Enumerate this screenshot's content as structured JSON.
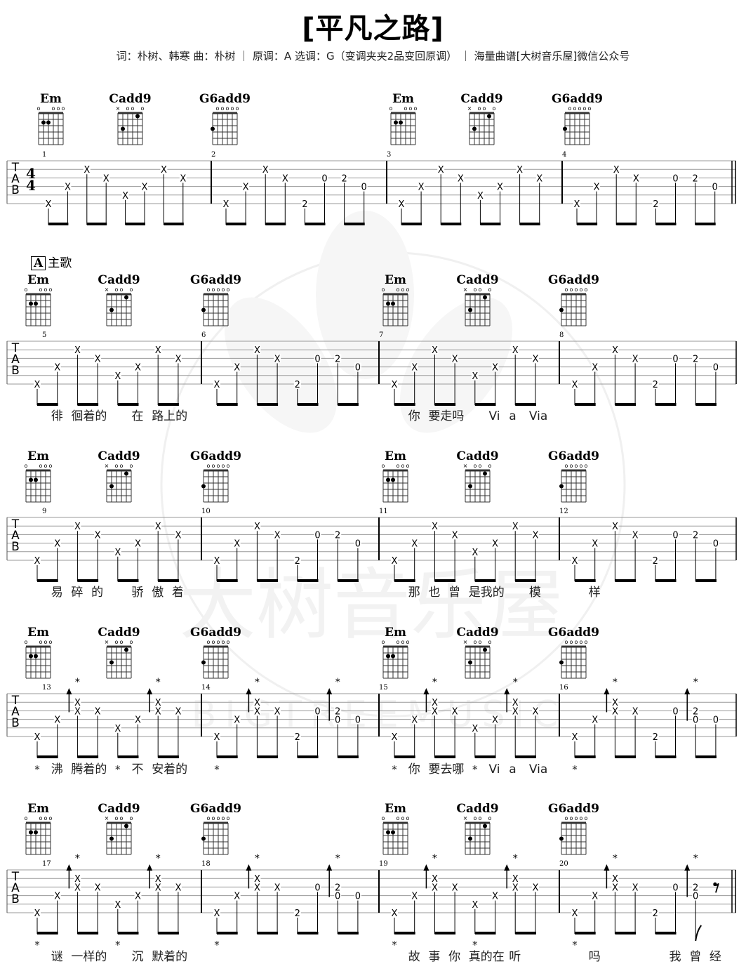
{
  "title": "[平凡之路]",
  "subtitle": "词：朴树、韩寒  曲：朴树 ｜ 原调：A  选调：G（变调夹夹2品变回原调） ｜ 海量曲谱[大树音乐屋]微信公众号",
  "watermark": {
    "cn": "大树音乐屋",
    "en": "BIGTREEMUSIC",
    "color": "#f1f1f1"
  },
  "tab_clef": [
    "T",
    "A",
    "B"
  ],
  "time_signature": {
    "top": "4",
    "bottom": "4"
  },
  "section": {
    "letter": "A",
    "name": "主歌"
  },
  "chords": {
    "Em": {
      "name": "Em",
      "markers": [
        "o",
        "",
        "",
        "o",
        "o",
        "o"
      ],
      "dots": [
        [
          5,
          2
        ],
        [
          4,
          2
        ]
      ]
    },
    "Cadd9": {
      "name": "Cadd9",
      "markers": [
        "×",
        "",
        "o",
        "o",
        "",
        "o"
      ],
      "dots": [
        [
          5,
          3
        ],
        [
          2,
          1
        ]
      ]
    },
    "G6add9": {
      "name": "G6add9",
      "markers": [
        "",
        "o",
        "o",
        "o",
        "o",
        "o"
      ],
      "dots": [
        [
          6,
          3
        ]
      ]
    }
  },
  "patterns": {
    "A": [
      {
        "n": [
          [
            6,
            "x"
          ]
        ]
      },
      {
        "n": [
          [
            4,
            "x"
          ]
        ]
      },
      {
        "n": [
          [
            2,
            "x"
          ]
        ]
      },
      {
        "n": [
          [
            3,
            "x"
          ]
        ]
      },
      {
        "n": [
          [
            5,
            "x"
          ]
        ]
      },
      {
        "n": [
          [
            4,
            "x"
          ]
        ]
      },
      {
        "n": [
          [
            2,
            "x"
          ]
        ]
      },
      {
        "n": [
          [
            3,
            "x"
          ]
        ]
      }
    ],
    "G": [
      {
        "n": [
          [
            6,
            "x"
          ]
        ]
      },
      {
        "n": [
          [
            4,
            "x"
          ]
        ]
      },
      {
        "n": [
          [
            2,
            "x"
          ]
        ]
      },
      {
        "n": [
          [
            3,
            "x"
          ]
        ]
      },
      {
        "n": [
          [
            6,
            "2"
          ]
        ]
      },
      {
        "n": [
          [
            3,
            "0"
          ]
        ]
      },
      {
        "n": [
          [
            3,
            "2"
          ]
        ]
      },
      {
        "n": [
          [
            4,
            "0"
          ]
        ]
      }
    ],
    "A_strum": [
      {
        "n": [
          [
            6,
            "x"
          ]
        ]
      },
      {
        "n": [
          [
            4,
            "x"
          ]
        ]
      },
      {
        "n": [
          [
            2,
            "x"
          ],
          [
            3,
            "x"
          ]
        ],
        "arrow": true,
        "star": true
      },
      {
        "n": [
          [
            3,
            "x"
          ]
        ]
      },
      {
        "n": [
          [
            5,
            "x"
          ]
        ]
      },
      {
        "n": [
          [
            4,
            "x"
          ]
        ]
      },
      {
        "n": [
          [
            2,
            "x"
          ],
          [
            3,
            "x"
          ]
        ],
        "arrow": true,
        "star": true
      },
      {
        "n": [
          [
            3,
            "x"
          ]
        ]
      }
    ],
    "G_strum": [
      {
        "n": [
          [
            6,
            "x"
          ]
        ]
      },
      {
        "n": [
          [
            4,
            "x"
          ]
        ]
      },
      {
        "n": [
          [
            2,
            "x"
          ],
          [
            3,
            "x"
          ]
        ],
        "arrow": true,
        "star": true
      },
      {
        "n": [
          [
            3,
            "x"
          ]
        ]
      },
      {
        "n": [
          [
            6,
            "2"
          ]
        ]
      },
      {
        "n": [
          [
            3,
            "0"
          ]
        ]
      },
      {
        "n": [
          [
            3,
            "2"
          ],
          [
            4,
            "0"
          ]
        ],
        "arrow": true,
        "star": true
      },
      {
        "n": [
          [
            4,
            "0"
          ]
        ]
      }
    ],
    "G_end": [
      {
        "n": [
          [
            6,
            "x"
          ]
        ]
      },
      {
        "n": [
          [
            4,
            "x"
          ]
        ]
      },
      {
        "n": [
          [
            2,
            "x"
          ],
          [
            3,
            "x"
          ]
        ],
        "arrow": true,
        "star": true
      },
      {
        "n": [
          [
            3,
            "x"
          ]
        ]
      },
      {
        "n": [
          [
            6,
            "2"
          ]
        ]
      },
      {
        "n": [
          [
            3,
            "0"
          ]
        ]
      },
      {
        "n": [
          [
            3,
            "2"
          ],
          [
            4,
            "0"
          ]
        ],
        "arrow": true,
        "star": true,
        "flag": true
      },
      {
        "rest": "eighth"
      }
    ]
  },
  "systems": [
    {
      "chords": [
        "Em",
        "Cadd9",
        "G6add9",
        "Em",
        "Cadd9",
        "G6add9"
      ],
      "measures": [
        {
          "number": "1",
          "pattern": "A"
        },
        {
          "number": "2",
          "pattern": "G"
        },
        {
          "number": "3",
          "pattern": "A"
        },
        {
          "number": "4",
          "pattern": "G"
        }
      ],
      "end": "double",
      "lyrics": []
    },
    {
      "section": true,
      "chords": [
        "Em",
        "Cadd9",
        "G6add9",
        "Em",
        "Cadd9",
        "G6add9"
      ],
      "measures": [
        {
          "number": "5",
          "pattern": "A"
        },
        {
          "number": "6",
          "pattern": "G"
        },
        {
          "number": "7",
          "pattern": "A"
        },
        {
          "number": "8",
          "pattern": "G"
        }
      ],
      "end": "single",
      "lyrics": [
        {
          "m": 0,
          "e": 1,
          "text": "徘"
        },
        {
          "m": 0,
          "e": 2,
          "text": "徊着的"
        },
        {
          "m": 0,
          "e": 5,
          "text": "在"
        },
        {
          "m": 0,
          "e": 6,
          "text": "路上的"
        },
        {
          "m": 2,
          "e": 1,
          "text": "你"
        },
        {
          "m": 2,
          "e": 2,
          "text": "要走吗"
        },
        {
          "m": 2,
          "e": 5,
          "text": "Vi"
        },
        {
          "m": 2,
          "e": 6,
          "text": "a"
        },
        {
          "m": 2,
          "e": 7,
          "text": "Via"
        }
      ]
    },
    {
      "chords": [
        "Em",
        "Cadd9",
        "G6add9",
        "Em",
        "Cadd9",
        "G6add9"
      ],
      "measures": [
        {
          "number": "9",
          "pattern": "A"
        },
        {
          "number": "10",
          "pattern": "G"
        },
        {
          "number": "11",
          "pattern": "A"
        },
        {
          "number": "12",
          "pattern": "G"
        }
      ],
      "end": "single",
      "lyrics": [
        {
          "m": 0,
          "e": 1,
          "text": "易"
        },
        {
          "m": 0,
          "e": 2,
          "text": "碎"
        },
        {
          "m": 0,
          "e": 3,
          "text": "的"
        },
        {
          "m": 0,
          "e": 5,
          "text": "骄"
        },
        {
          "m": 0,
          "e": 6,
          "text": "傲"
        },
        {
          "m": 0,
          "e": 7,
          "text": "着"
        },
        {
          "m": 2,
          "e": 1,
          "text": "那"
        },
        {
          "m": 2,
          "e": 2,
          "text": "也"
        },
        {
          "m": 2,
          "e": 3,
          "text": "曾"
        },
        {
          "m": 2,
          "e": 4,
          "text": "是我的"
        },
        {
          "m": 2,
          "e": 7,
          "text": "模"
        },
        {
          "m": 3,
          "e": 1,
          "text": "样"
        }
      ]
    },
    {
      "chords": [
        "Em",
        "Cadd9",
        "G6add9",
        "Em",
        "Cadd9",
        "G6add9"
      ],
      "measures": [
        {
          "number": "13",
          "pattern": "A_strum"
        },
        {
          "number": "14",
          "pattern": "G_strum"
        },
        {
          "number": "15",
          "pattern": "A_strum"
        },
        {
          "number": "16",
          "pattern": "G_strum"
        }
      ],
      "end": "single",
      "lyrics": [
        {
          "m": 0,
          "e": 0,
          "text": "*",
          "mark": true
        },
        {
          "m": 0,
          "e": 1,
          "text": "沸"
        },
        {
          "m": 0,
          "e": 2,
          "text": "腾着的"
        },
        {
          "m": 0,
          "e": 4,
          "text": "*",
          "mark": true
        },
        {
          "m": 0,
          "e": 5,
          "text": "不"
        },
        {
          "m": 0,
          "e": 6,
          "text": "安着的"
        },
        {
          "m": 1,
          "e": 0,
          "text": "*",
          "mark": true
        },
        {
          "m": 2,
          "e": 0,
          "text": "*",
          "mark": true
        },
        {
          "m": 2,
          "e": 1,
          "text": "你"
        },
        {
          "m": 2,
          "e": 2,
          "text": "要去哪"
        },
        {
          "m": 2,
          "e": 4,
          "text": "*",
          "mark": true
        },
        {
          "m": 2,
          "e": 5,
          "text": "Vi"
        },
        {
          "m": 2,
          "e": 6,
          "text": "a"
        },
        {
          "m": 2,
          "e": 7,
          "text": "Via"
        },
        {
          "m": 3,
          "e": 0,
          "text": "*",
          "mark": true
        }
      ]
    },
    {
      "chords": [
        "Em",
        "Cadd9",
        "G6add9",
        "Em",
        "Cadd9",
        "G6add9"
      ],
      "measures": [
        {
          "number": "17",
          "pattern": "A_strum"
        },
        {
          "number": "18",
          "pattern": "G_strum"
        },
        {
          "number": "19",
          "pattern": "A_strum"
        },
        {
          "number": "20",
          "pattern": "G_end"
        }
      ],
      "end": "double",
      "marks_row": true,
      "lyrics": [
        {
          "m": 0,
          "e": 0,
          "text": "*",
          "mark": true
        },
        {
          "m": 0,
          "e": 4,
          "text": "*",
          "mark": true
        },
        {
          "m": 1,
          "e": 0,
          "text": "*",
          "mark": true
        },
        {
          "m": 2,
          "e": 0,
          "text": "*",
          "mark": true
        },
        {
          "m": 2,
          "e": 4,
          "text": "*",
          "mark": true
        },
        {
          "m": 3,
          "e": 0,
          "text": "*",
          "mark": true
        },
        {
          "m": 0,
          "e": 1,
          "text": "谜"
        },
        {
          "m": 0,
          "e": 2,
          "text": "一样的"
        },
        {
          "m": 0,
          "e": 5,
          "text": "沉"
        },
        {
          "m": 0,
          "e": 6,
          "text": "默着的"
        },
        {
          "m": 2,
          "e": 1,
          "text": "故"
        },
        {
          "m": 2,
          "e": 2,
          "text": "事"
        },
        {
          "m": 2,
          "e": 3,
          "text": "你"
        },
        {
          "m": 2,
          "e": 4,
          "text": "真的在"
        },
        {
          "m": 2,
          "e": 6,
          "text": "听"
        },
        {
          "m": 3,
          "e": 1,
          "text": "吗"
        },
        {
          "m": 3,
          "e": 5,
          "text": "我"
        },
        {
          "m": 3,
          "e": 6,
          "text": "曾"
        },
        {
          "m": 3,
          "e": 7,
          "text": "经"
        }
      ]
    }
  ]
}
